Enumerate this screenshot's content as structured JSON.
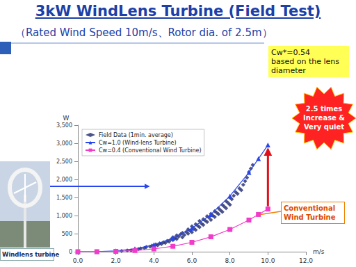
{
  "chart_data": {
    "type": "scatter",
    "title": "3kW WindLens Turbine (Field Test)",
    "subtitle": "（Rated Wind Speed 10m/s、Rotor dia. of 2.5m）",
    "x_label": "m/s",
    "y_label": "W",
    "xlim": [
      0,
      12
    ],
    "xticks": [
      {
        "value": 0,
        "label": "0.0"
      },
      {
        "value": 2,
        "label": "2.0"
      },
      {
        "value": 4,
        "label": "4.0"
      },
      {
        "value": 6,
        "label": "6.0"
      },
      {
        "value": 8,
        "label": "8.0"
      },
      {
        "value": 10,
        "label": "10.0"
      },
      {
        "value": 12,
        "label": "12.0"
      }
    ],
    "ylim": [
      0,
      3500
    ],
    "yticks": [
      0,
      500,
      {
        "value": 1000,
        "label": "1,000"
      },
      {
        "value": 1500,
        "label": "1,500"
      },
      {
        "value": 2000,
        "label": "2,000"
      },
      {
        "value": 2500,
        "label": "2,500"
      },
      {
        "value": 3000,
        "label": "3,000"
      },
      {
        "value": 3500,
        "label": "3,500"
      }
    ],
    "grid": false,
    "legend": "upper left",
    "series": [
      {
        "name": "Field Data (1min. average)",
        "type": "scatter",
        "marker": "diamond",
        "color": "#1f2a6e",
        "x": [
          2.3,
          2.6,
          2.8,
          3.0,
          3.2,
          3.3,
          3.5,
          3.6,
          3.8,
          3.9,
          4.0,
          4.1,
          4.2,
          4.3,
          4.4,
          4.5,
          4.6,
          4.7,
          4.8,
          4.9,
          5.0,
          5.0,
          5.1,
          5.2,
          5.2,
          5.3,
          5.4,
          5.5,
          5.5,
          5.6,
          5.7,
          5.8,
          5.8,
          5.9,
          6.0,
          6.0,
          6.1,
          6.2,
          6.2,
          6.3,
          6.4,
          6.4,
          6.5,
          6.6,
          6.6,
          6.7,
          6.8,
          6.8,
          6.9,
          7.0,
          7.0,
          7.1,
          7.2,
          7.2,
          7.3,
          7.4,
          7.4,
          7.5,
          7.6,
          7.6,
          7.7,
          7.8,
          7.8,
          7.9,
          8.0,
          8.0,
          8.1,
          8.2,
          8.3,
          8.4,
          8.5,
          8.6,
          8.7,
          8.8,
          8.9,
          9.0,
          9.1,
          9.2
        ],
        "values": [
          20,
          35,
          40,
          60,
          70,
          90,
          100,
          130,
          140,
          170,
          150,
          200,
          180,
          230,
          210,
          260,
          240,
          300,
          280,
          340,
          320,
          400,
          380,
          350,
          450,
          420,
          480,
          400,
          520,
          460,
          550,
          500,
          620,
          580,
          540,
          700,
          650,
          600,
          760,
          720,
          680,
          850,
          780,
          740,
          900,
          860,
          820,
          980,
          940,
          880,
          1050,
          1000,
          960,
          1120,
          1080,
          1040,
          1200,
          1150,
          1100,
          1300,
          1250,
          1200,
          1400,
          1350,
          1300,
          1500,
          1450,
          1550,
          1650,
          1600,
          1750,
          1700,
          1850,
          1950,
          2050,
          2200,
          2300,
          2400
        ]
      },
      {
        "name": "Cw=1.0 (Wind-lens Turbine)",
        "type": "line",
        "marker": "triangle",
        "line_style": "solid",
        "color": "#2746f0",
        "x": [
          0,
          1,
          2,
          3,
          4,
          5,
          6,
          7,
          8,
          9,
          9.5,
          10
        ],
        "values": [
          0,
          3,
          24,
          81,
          192,
          375,
          650,
          1030,
          1540,
          2190,
          2570,
          2950
        ]
      },
      {
        "name": "Cw=0.4 (Conventional Wind Turbine)",
        "type": "line",
        "marker": "square",
        "line_style": "solid",
        "color": "#f03cc8",
        "x": [
          0,
          1,
          2,
          3,
          4,
          5,
          6,
          7,
          8,
          9,
          9.5,
          10
        ],
        "values": [
          0,
          1,
          10,
          32,
          77,
          150,
          260,
          412,
          615,
          875,
          1030,
          1180
        ]
      }
    ],
    "annotations": [
      {
        "lines": [
          "Cw*=0.54",
          "based on the lens diameter"
        ]
      },
      {
        "lines": [
          "2.5 times",
          "Increase &",
          "Very quiet"
        ]
      },
      {
        "lines": [
          "Conventional",
          "Wind Turbine"
        ]
      },
      {
        "lines": [
          "Windlens turbine"
        ]
      }
    ]
  }
}
